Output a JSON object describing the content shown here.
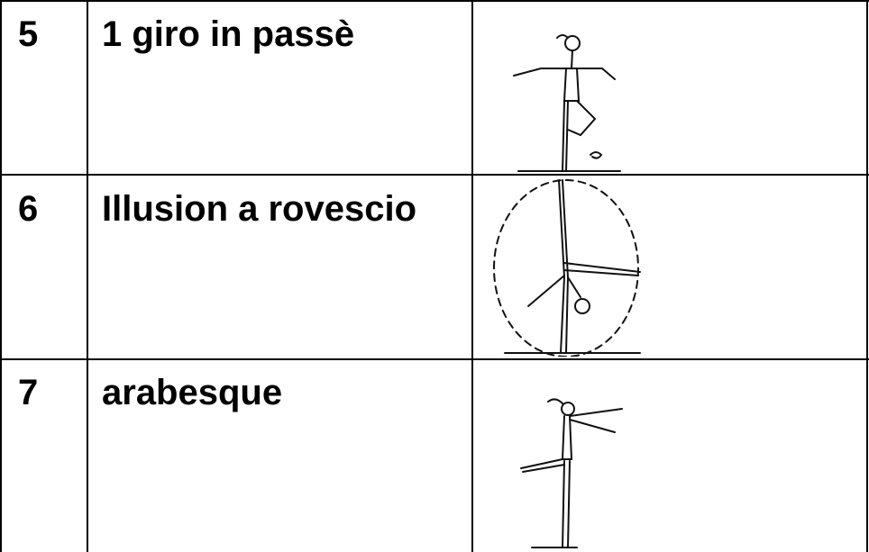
{
  "table": {
    "rows": [
      [
        "5",
        "1 giro in passè"
      ],
      [
        "6",
        "Illusion a rovescio"
      ],
      [
        "7",
        "arabesque"
      ]
    ]
  }
}
